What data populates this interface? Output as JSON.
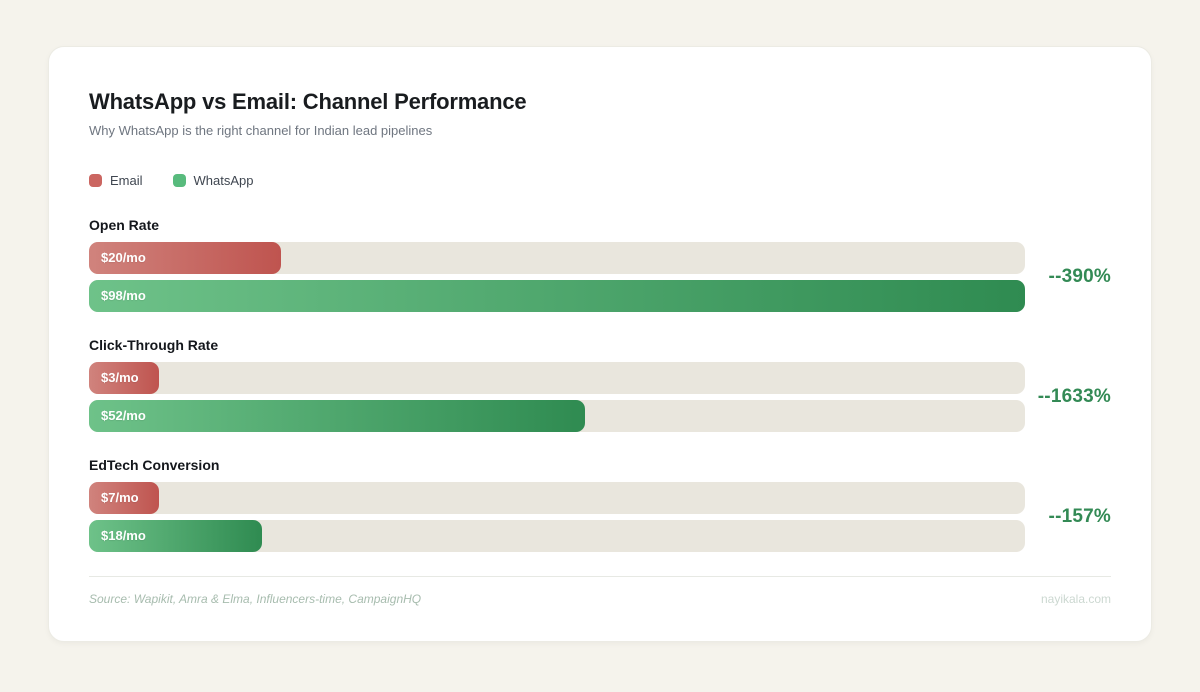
{
  "header": {
    "title": "WhatsApp vs Email: Channel Performance",
    "subtitle": "Why WhatsApp is the right channel for Indian lead pipelines"
  },
  "legend": {
    "email": {
      "label": "Email",
      "color": "#cb6661"
    },
    "whatsapp": {
      "label": "WhatsApp",
      "color": "#58bb7d"
    }
  },
  "chart_data": {
    "type": "bar",
    "orientation": "horizontal",
    "title": "WhatsApp vs Email: Channel Performance",
    "subtitle": "Why WhatsApp is the right channel for Indian lead pipelines",
    "categories": [
      "Open Rate",
      "Click-Through Rate",
      "EdTech Conversion"
    ],
    "series": [
      {
        "name": "Email",
        "values": [
          20,
          3,
          7
        ],
        "bar_labels": [
          "$20/mo",
          "$3/mo",
          "$7/mo"
        ]
      },
      {
        "name": "WhatsApp",
        "values": [
          98,
          52,
          18
        ],
        "bar_labels": [
          "$98/mo",
          "$52/mo",
          "$18/mo"
        ]
      }
    ],
    "annotations": [
      "--390%",
      "--1633%",
      "--157%"
    ],
    "value_axis_max": 98,
    "grid": false,
    "legend_position": "top-left",
    "colors": {
      "email_gradient": [
        "#d0837d",
        "#bf544f"
      ],
      "whatsapp_gradient": [
        "#6ec289",
        "#2f8b51"
      ],
      "track": "#e9e6dd",
      "annotation_text": "#338a55",
      "page_background": "#f5f3ec",
      "card_background": "#ffffff"
    }
  },
  "groups": [
    {
      "label": "Open Rate",
      "email": {
        "label": "$20/mo",
        "width_pct": 20.5
      },
      "whatsapp": {
        "label": "$98/mo",
        "width_pct": 100
      },
      "delta": "--390%"
    },
    {
      "label": "Click-Through Rate",
      "email": {
        "label": "$3/mo",
        "width_pct": 7.5
      },
      "whatsapp": {
        "label": "$52/mo",
        "width_pct": 53
      },
      "delta": "--1633%"
    },
    {
      "label": "EdTech Conversion",
      "email": {
        "label": "$7/mo",
        "width_pct": 7.5
      },
      "whatsapp": {
        "label": "$18/mo",
        "width_pct": 18.5
      },
      "delta": "--157%"
    }
  ],
  "footer": {
    "source": "Source: Wapikit, Amra & Elma, Influencers-time, CampaignHQ",
    "site": "nayikala.com"
  }
}
